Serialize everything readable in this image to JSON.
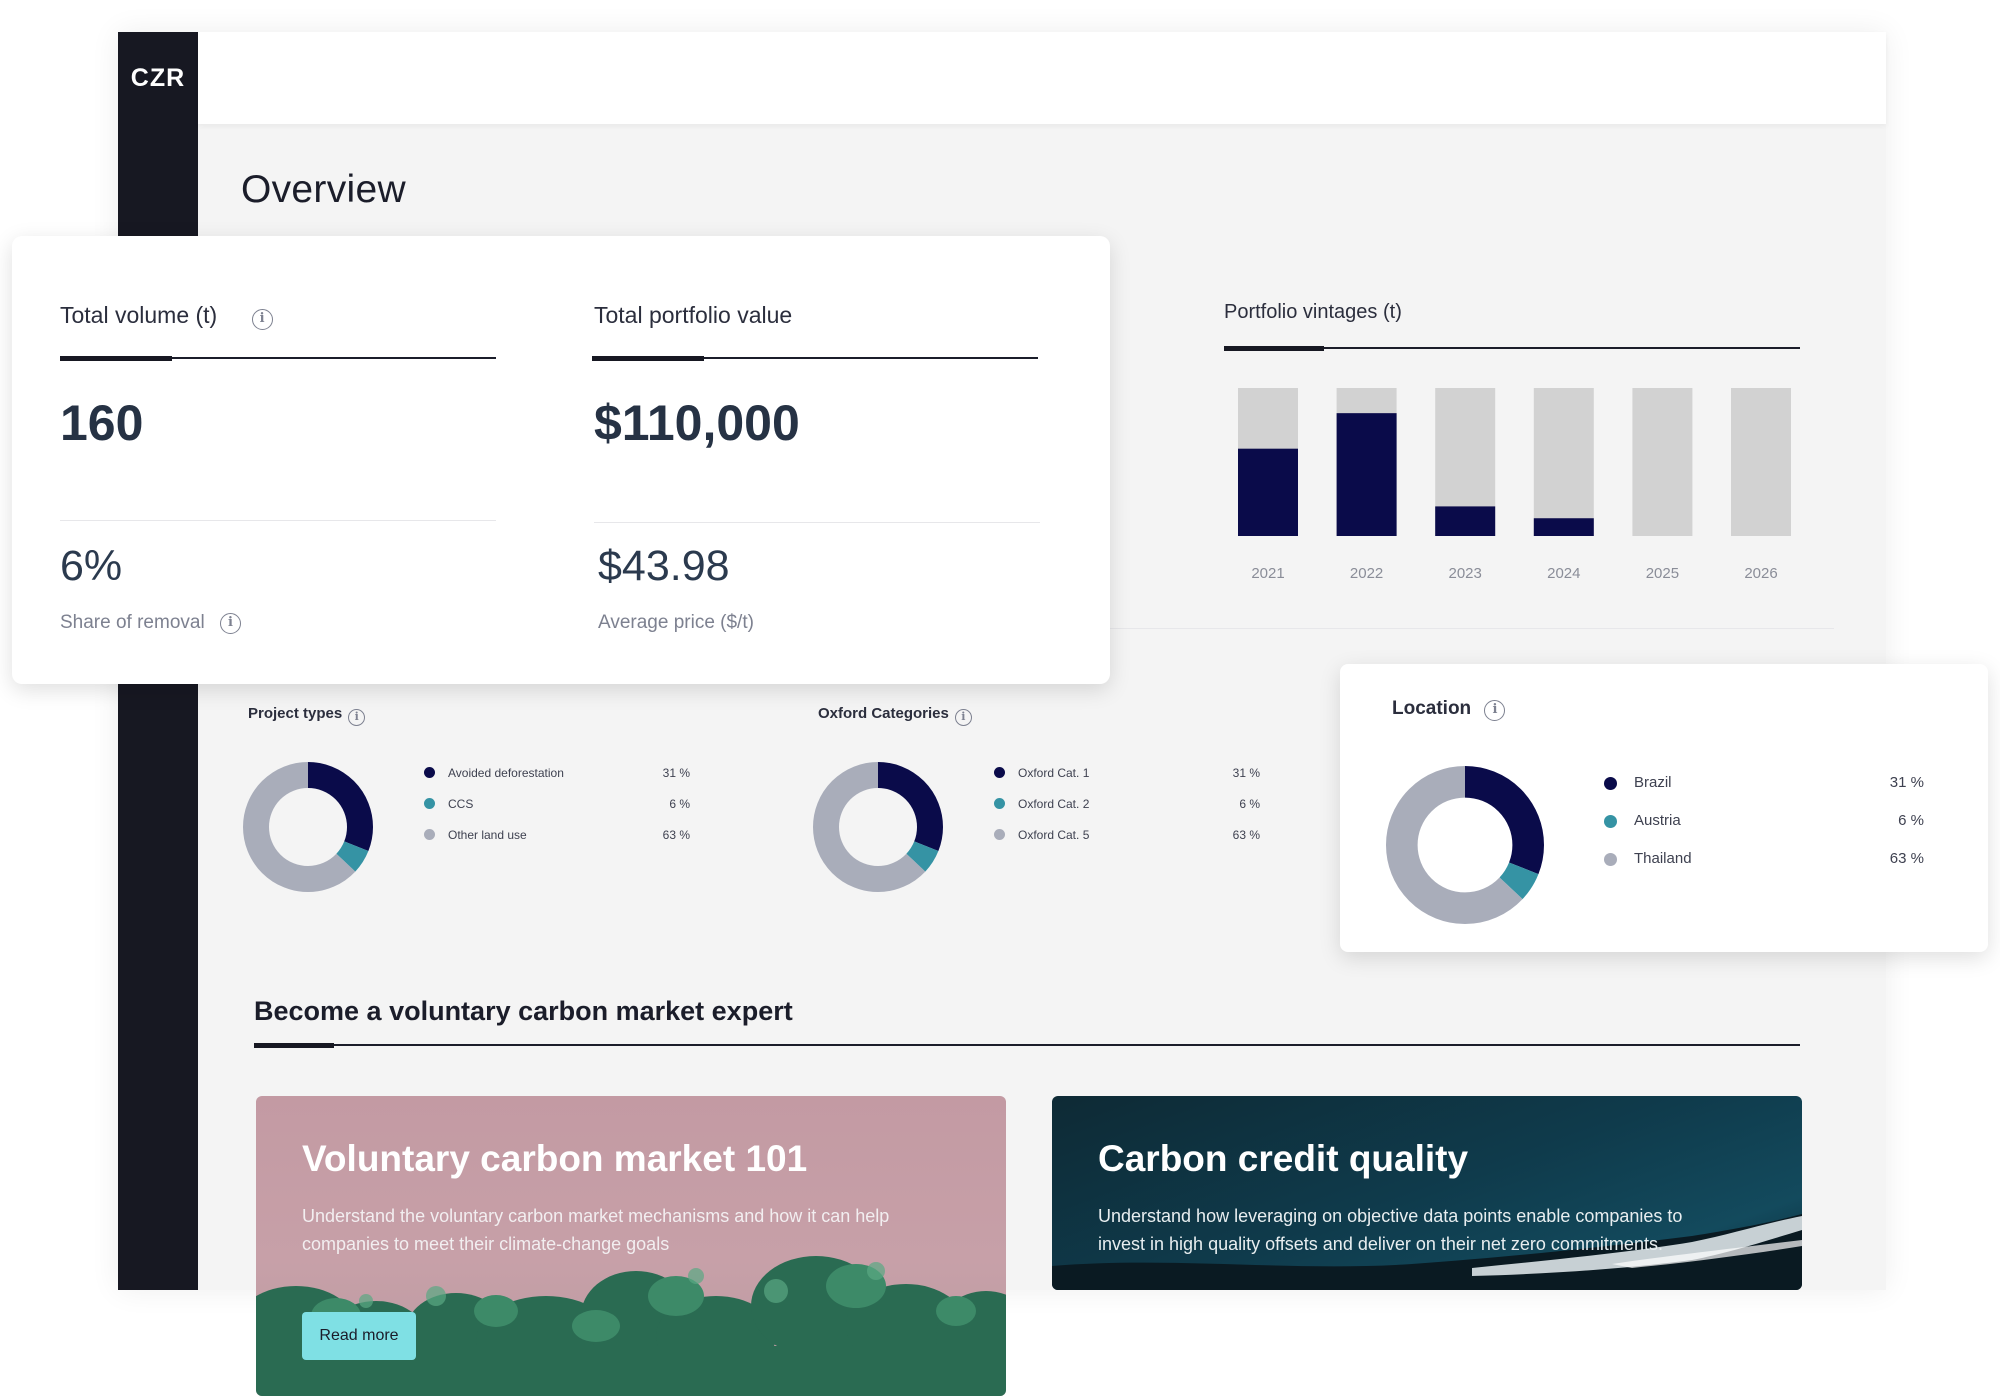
{
  "app": {
    "logo": "CZR"
  },
  "page_title": "Overview",
  "kpi": {
    "total_volume_label": "Total volume (t)",
    "total_volume_value": "160",
    "share_removal_value": "6%",
    "share_removal_label": "Share of removal",
    "portfolio_value_label": "Total portfolio value",
    "portfolio_value_value": "$110,000",
    "avg_price_value": "$43.98",
    "avg_price_label": "Average price ($/t)"
  },
  "vintages": {
    "title": "Portfolio vintages (t)",
    "chart_data": {
      "type": "bar",
      "categories": [
        "2021",
        "2022",
        "2023",
        "2024",
        "2025",
        "2026"
      ],
      "series": [
        {
          "values": [
            0.59,
            0.83,
            0.2,
            0.12,
            0,
            0
          ]
        }
      ],
      "ylim": [
        0,
        1
      ],
      "colors": {
        "filled": "#0a0b4a",
        "track": "#d2d2d2"
      }
    }
  },
  "project_types": {
    "title": "Project types",
    "items": [
      {
        "label": "Avoided deforestation",
        "value": "31 %",
        "pct": 31,
        "color": "#0a0b4a"
      },
      {
        "label": "CCS",
        "value": "6 %",
        "pct": 6,
        "color": "#3593a4"
      },
      {
        "label": "Other land use",
        "value": "63 %",
        "pct": 63,
        "color": "#a9adba"
      }
    ]
  },
  "oxford_categories": {
    "title": "Oxford Categories",
    "items": [
      {
        "label": "Oxford Cat. 1",
        "value": "31 %",
        "pct": 31,
        "color": "#0a0b4a"
      },
      {
        "label": "Oxford Cat. 2",
        "value": "6 %",
        "pct": 6,
        "color": "#3593a4"
      },
      {
        "label": "Oxford Cat. 5",
        "value": "63 %",
        "pct": 63,
        "color": "#a9adba"
      }
    ]
  },
  "location": {
    "title": "Location",
    "items": [
      {
        "label": "Brazil",
        "value": "31 %",
        "pct": 31,
        "color": "#0a0b4a"
      },
      {
        "label": "Austria",
        "value": "6 %",
        "pct": 6,
        "color": "#3593a4"
      },
      {
        "label": "Thailand",
        "value": "63 %",
        "pct": 63,
        "color": "#a9adba"
      }
    ]
  },
  "expert": {
    "title": "Become a voluntary carbon market expert",
    "cards": [
      {
        "title": "Voluntary carbon market 101",
        "text": "Understand the voluntary carbon market mechanisms and how it can help companies to meet their climate-change goals",
        "button": "Read more"
      },
      {
        "title": "Carbon credit quality",
        "text": "Understand how leveraging on objective data points enable companies to invest in high quality offsets and deliver on their net zero commitments."
      }
    ]
  }
}
